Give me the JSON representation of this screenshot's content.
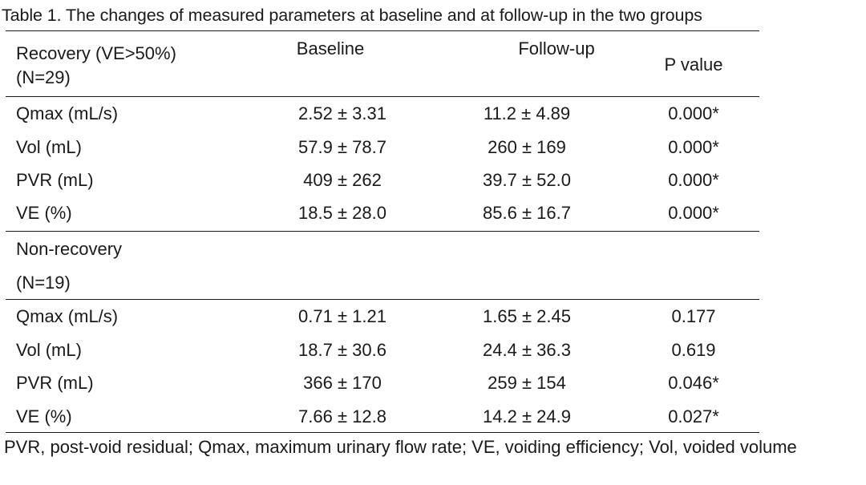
{
  "caption": "Table 1. The changes of measured parameters at baseline and at follow-up in the two groups",
  "header": {
    "group_label_line1": "Recovery (VE>50%)",
    "group_label_line2": "(N=29)",
    "col_baseline": "Baseline",
    "col_followup": "Follow-up",
    "col_pvalue": "P value"
  },
  "recovery_rows": [
    {
      "param": "Qmax (mL/s)",
      "baseline": "2.52 ± 3.31",
      "followup": "11.2 ± 4.89",
      "p": "0.000*"
    },
    {
      "param": "Vol (mL)",
      "baseline": "57.9 ± 78.7",
      "followup": "260 ± 169",
      "p": "0.000*"
    },
    {
      "param": "PVR (mL)",
      "baseline": "409 ± 262",
      "followup": "39.7 ± 52.0",
      "p": "0.000*"
    },
    {
      "param": "VE (%)",
      "baseline": "18.5 ± 28.0",
      "followup": "85.6 ± 16.7",
      "p": "0.000*"
    }
  ],
  "nonrecovery_group": {
    "label_line1": "Non-recovery",
    "label_line2": "(N=19)"
  },
  "nonrecovery_rows": [
    {
      "param": "Qmax (mL/s)",
      "baseline": "0.71 ± 1.21",
      "followup": "1.65 ± 2.45",
      "p": "0.177"
    },
    {
      "param": "Vol (mL)",
      "baseline": "18.7 ± 30.6",
      "followup": "24.4 ± 36.3",
      "p": "0.619"
    },
    {
      "param": "PVR (mL)",
      "baseline": "366 ± 170",
      "followup": "259 ± 154",
      "p": "0.046*"
    },
    {
      "param": "VE (%)",
      "baseline": "7.66 ± 12.8",
      "followup": "14.2 ± 24.9",
      "p": "0.027*"
    }
  ],
  "footnote": "PVR, post-void residual; Qmax, maximum urinary flow rate; VE, voiding efficiency; Vol, voided volume"
}
